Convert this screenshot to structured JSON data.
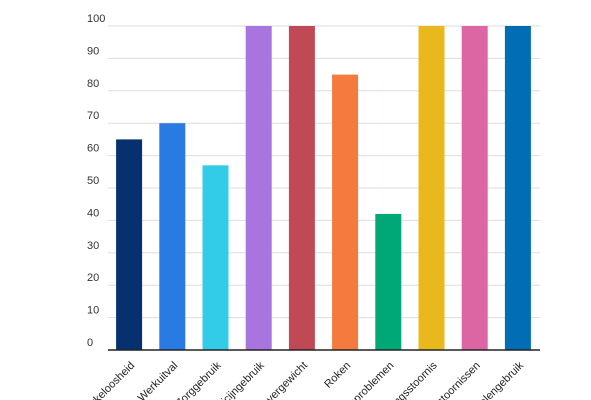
{
  "chart_data": {
    "type": "bar",
    "title": "",
    "xlabel": "",
    "ylabel": "",
    "ylim": [
      0,
      100
    ],
    "yticks": [
      0,
      10,
      20,
      30,
      40,
      50,
      60,
      70,
      80,
      90,
      100
    ],
    "grid": true,
    "categories": [
      "rkeloosheid",
      "Werkuitval",
      "Zorggebruik",
      "dicijngebruik",
      "overgewicht",
      "Roken",
      "nproblemen",
      "ingsstoornis",
      "tstoornissen",
      "delengebruik"
    ],
    "values": [
      65,
      70,
      57,
      100,
      100,
      85,
      42,
      100,
      100,
      100
    ],
    "colors": [
      "#06306f",
      "#2a7ae4",
      "#33cce8",
      "#a874dd",
      "#bf4a55",
      "#f57a3e",
      "#00a878",
      "#e8b81c",
      "#dc66a3",
      "#006db5"
    ]
  }
}
